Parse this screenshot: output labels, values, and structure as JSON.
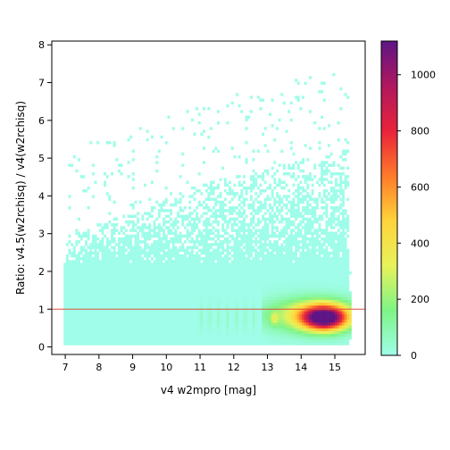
{
  "chart_data": {
    "type": "heatmap",
    "xlabel": "v4 w2mpro [mag]",
    "ylabel": "Ratio: v4.5(w2rchisq) / v4(w2rchisq)",
    "xlim": [
      6.6,
      15.9
    ],
    "ylim": [
      -0.2,
      8.1
    ],
    "x_ticks": [
      "7",
      "8",
      "9",
      "10",
      "11",
      "12",
      "13",
      "14",
      "15"
    ],
    "y_ticks": [
      "0",
      "1",
      "2",
      "3",
      "4",
      "5",
      "6",
      "7",
      "8"
    ],
    "reference_line": {
      "y": 1.0,
      "color": "#e0503a"
    },
    "colorbar": {
      "min": 0,
      "max": 1120,
      "ticks": [
        "0",
        "200",
        "400",
        "600",
        "800",
        "1000"
      ],
      "colors": [
        "#9ffde9",
        "#7ef486",
        "#e8f25a",
        "#ffd33a",
        "#ff7a2a",
        "#e8233a",
        "#b0175e",
        "#5e1585"
      ]
    },
    "grid": false,
    "legend": "colorbar-right",
    "notes": "2D density histogram of ratio vs magnitude; peak count ~1100 near x=14.7, y=0.8"
  }
}
